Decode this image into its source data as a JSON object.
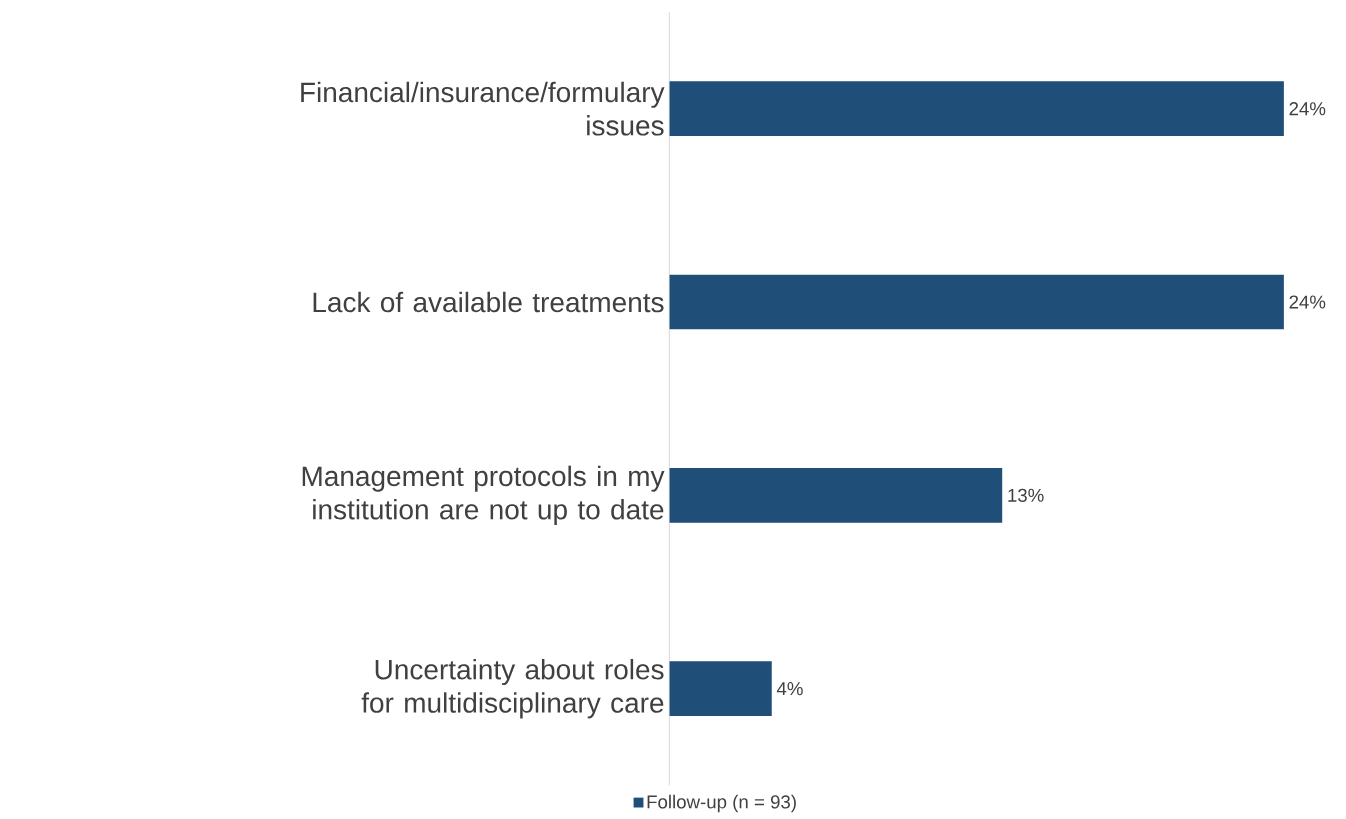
{
  "chart_data": {
    "type": "bar",
    "orientation": "horizontal",
    "categories": [
      "Financial/insurance/formulary issues",
      "Lack of available treatments",
      "Management protocols in my institution are not up to date",
      "Uncertainty about roles for multidisciplinary care"
    ],
    "series": [
      {
        "name": "Follow-up (n = 93)",
        "color": "#1f4e79",
        "values": [
          24,
          24,
          13,
          4
        ],
        "value_labels": [
          "24%",
          "24%",
          "13%",
          "4%"
        ]
      }
    ],
    "legend": "bottom",
    "tick_labels": "y"
  }
}
